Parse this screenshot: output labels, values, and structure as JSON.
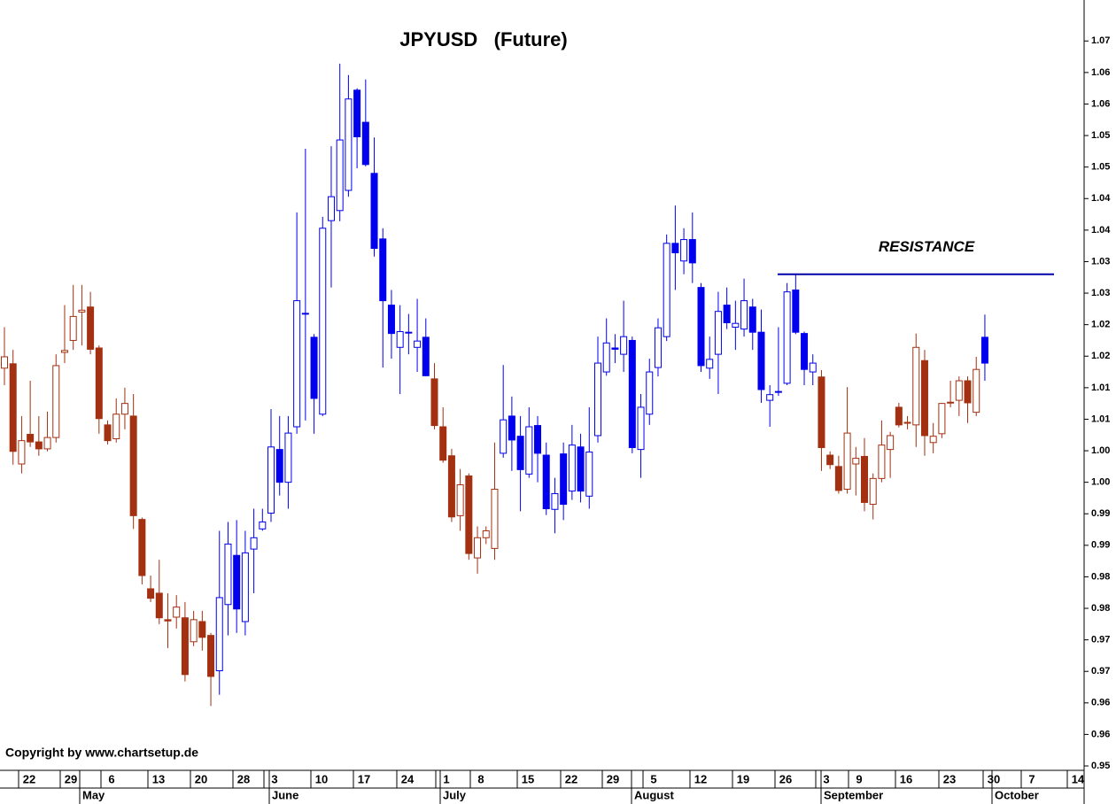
{
  "chart_data": {
    "type": "candlestick",
    "title": "JPYUSD   (Future)",
    "copyright": "Copyright by www.chartsetup.de",
    "x_day_labels": [
      "22",
      "29",
      "6",
      "13",
      "20",
      "28",
      "3",
      "10",
      "17",
      "24",
      "1",
      "8",
      "15",
      "22",
      "29",
      "5",
      "12",
      "19",
      "26",
      "3",
      "9",
      "16",
      "23",
      "30",
      "7",
      "14"
    ],
    "x_month_labels": [
      "May",
      "June",
      "July",
      "August",
      "September",
      "October"
    ],
    "open": [
      1.0131,
      1.0138,
      0.9979,
      1.0026,
      1.0014,
      1.0003,
      1.0021,
      1.0156,
      1.0175,
      1.022,
      1.0228,
      1.0163,
      1.0041,
      1.0019,
      1.0058,
      1.0055,
      0.9891,
      0.9781,
      0.9774,
      0.9732,
      0.9736,
      0.9735,
      0.9697,
      0.9729,
      0.9707,
      0.9651,
      0.9756,
      0.9834,
      0.9729,
      0.9844,
      0.9876,
      0.9901,
      1.0002,
      0.995,
      1.0038,
      1.0218,
      1.018,
      1.0058,
      1.0365,
      1.0381,
      1.0413,
      1.0572,
      1.0521,
      1.044,
      1.0336,
      1.0231,
      1.0164,
      1.0188,
      1.0164,
      1.018,
      1.0114,
      1.0038,
      0.9992,
      0.9897,
      0.996,
      0.983,
      0.9862,
      0.9845,
      0.9996,
      1.0055,
      1.0023,
      0.9963,
      1.004,
      0.9993,
      0.9907,
      0.9995,
      0.9936,
      1.0006,
      0.9928,
      1.0024,
      1.0125,
      1.0163,
      1.0153,
      1.0175,
      1.0002,
      1.0058,
      1.0132,
      1.0181,
      1.0329,
      1.0301,
      1.0335,
      1.0259,
      1.0131,
      1.0153,
      1.0231,
      1.0196,
      1.0193,
      1.0228,
      1.0188,
      1.008,
      1.0094,
      1.0107,
      1.0255,
      1.0186,
      1.0125,
      1.0117,
      0.9993,
      0.9975,
      0.9939,
      0.9979,
      0.9991,
      0.9915,
      0.9956,
      1.0002,
      1.0069,
      1.0045,
      1.0041,
      1.0143,
      1.0013,
      1.0027,
      1.0076,
      1.008,
      1.0111,
      1.0061,
      1.018
    ],
    "high": [
      1.0196,
      1.016,
      1.0055,
      1.0111,
      1.0055,
      1.0062,
      1.0153,
      1.0231,
      1.0263,
      1.0263,
      1.0252,
      1.0167,
      1.0048,
      1.0083,
      1.01,
      1.009,
      0.9894,
      0.9802,
      0.9827,
      0.9774,
      0.9771,
      0.976,
      0.9746,
      0.9746,
      0.9711,
      0.9873,
      0.9887,
      0.989,
      0.9873,
      0.9908,
      0.9908,
      1.0066,
      1.0055,
      1.0055,
      1.0378,
      1.0479,
      1.0185,
      1.0371,
      1.0483,
      1.0614,
      1.0596,
      1.0575,
      1.0589,
      1.0497,
      1.0353,
      1.0255,
      1.0231,
      1.0217,
      1.0241,
      1.021,
      1.0139,
      1.0069,
      1.0003,
      0.9971,
      0.9964,
      0.988,
      0.988,
      1.0013,
      1.0136,
      1.0086,
      1.0055,
      1.0069,
      1.0055,
      1.0013,
      0.9957,
      1.0013,
      1.0041,
      1.0027,
      1.0069,
      1.0181,
      1.021,
      1.0185,
      1.0238,
      1.0181,
      1.009,
      1.0146,
      1.021,
      1.0343,
      1.0389,
      1.0353,
      1.0378,
      1.0266,
      1.0181,
      1.0252,
      1.0259,
      1.0238,
      1.0273,
      1.0241,
      1.0224,
      1.0104,
      1.0196,
      1.0266,
      1.028,
      1.0189,
      1.0153,
      1.0128,
      0.9999,
      0.9992,
      1.0101,
      1.0006,
      1.002,
      0.9964,
      1.0048,
      1.003,
      1.0076,
      1.0055,
      1.0186,
      1.016,
      1.0044,
      1.0076,
      1.0111,
      1.0118,
      1.0118,
      1.0149,
      1.0216
    ],
    "low": [
      1.0104,
      0.9978,
      0.9964,
      1.0006,
      0.9992,
      0.9999,
      1.0013,
      1.0139,
      1.016,
      1.0167,
      1.0153,
      1.0027,
      1.001,
      1.0013,
      1.0034,
      0.9876,
      0.9788,
      0.976,
      0.9725,
      0.9687,
      0.9718,
      0.9634,
      0.969,
      0.9683,
      0.9595,
      0.9613,
      0.9707,
      0.9711,
      0.9707,
      0.9774,
      0.9873,
      0.9887,
      0.9929,
      0.9908,
      1.0027,
      1.0048,
      1.0027,
      1.0055,
      1.0259,
      1.0364,
      1.0403,
      1.0448,
      1.0451,
      1.0308,
      1.0132,
      1.0146,
      1.009,
      1.0153,
      1.0125,
      1.0118,
      1.0034,
      0.9981,
      0.9887,
      0.9873,
      0.9827,
      0.9805,
      0.9852,
      0.9827,
      0.9989,
      0.9968,
      0.9904,
      0.9957,
      0.995,
      0.9898,
      0.9869,
      0.989,
      0.9922,
      0.9918,
      0.9908,
      1.0013,
      1.0119,
      1.0139,
      1.0125,
      0.9996,
      0.9957,
      1.0041,
      1.0118,
      1.0174,
      1.0255,
      1.028,
      1.0266,
      1.0125,
      1.0114,
      1.009,
      1.0193,
      1.016,
      1.0181,
      1.016,
      1.0076,
      1.0038,
      1.0087,
      1.0104,
      1.0185,
      1.0104,
      1.0104,
      0.9968,
      0.9971,
      0.9932,
      0.9932,
      0.9929,
      0.9904,
      0.9891,
      0.995,
      0.9957,
      1.0037,
      1.0034,
      1.0006,
      0.9992,
      0.9996,
      1.002,
      1.0069,
      1.0055,
      1.0044,
      1.0055,
      1.0111
    ],
    "close": [
      1.0149,
      0.9999,
      1.0016,
      1.0014,
      1.0003,
      1.0021,
      1.0135,
      1.0159,
      1.0213,
      1.0223,
      1.0161,
      1.0051,
      1.0016,
      1.0058,
      1.0075,
      0.9897,
      0.9802,
      0.9766,
      0.9735,
      0.973,
      0.9752,
      0.9645,
      0.9732,
      0.9704,
      0.9642,
      0.9767,
      0.9852,
      0.9749,
      0.9838,
      0.9862,
      0.9887,
      1.0006,
      0.995,
      1.0028,
      1.0238,
      1.0217,
      1.0083,
      1.0353,
      1.0403,
      1.0493,
      1.0558,
      1.0498,
      1.0454,
      1.0321,
      1.0238,
      1.0186,
      1.0189,
      1.0187,
      1.0174,
      1.0119,
      1.004,
      0.9985,
      0.9895,
      0.9946,
      0.9837,
      0.9862,
      0.9873,
      0.9939,
      1.0049,
      1.0017,
      0.997,
      1.0038,
      0.9996,
      0.9908,
      0.9932,
      0.9915,
      1.0009,
      0.9936,
      0.9998,
      1.0139,
      1.0171,
      1.0161,
      1.0181,
      1.0005,
      1.0069,
      1.0125,
      1.0195,
      1.0329,
      1.0314,
      1.0335,
      1.0298,
      1.0135,
      1.0145,
      1.0221,
      1.0203,
      1.0202,
      1.0238,
      1.0188,
      1.0097,
      1.0089,
      1.0093,
      1.0252,
      1.0188,
      1.0129,
      1.0139,
      1.0005,
      0.9978,
      0.9937,
      1.0028,
      0.9988,
      0.9918,
      0.9956,
      1.0009,
      1.0024,
      1.0041,
      1.0044,
      1.0164,
      1.0024,
      1.0023,
      1.0075,
      1.0077,
      1.0111,
      1.0076,
      1.0129,
      1.0139
    ],
    "colors": [
      "#a33010",
      "#a33010",
      "#a33010",
      "#a33010",
      "#a33010",
      "#a33010",
      "#a33010",
      "#a33010",
      "#a33010",
      "#a33010",
      "#a33010",
      "#a33010",
      "#a33010",
      "#a33010",
      "#a33010",
      "#a33010",
      "#a33010",
      "#a33010",
      "#a33010",
      "#a33010",
      "#a33010",
      "#a33010",
      "#a33010",
      "#a33010",
      "#a33010",
      "#0000ee",
      "#0000ee",
      "#0000ee",
      "#0000ee",
      "#0000ee",
      "#0000ee",
      "#0000ee",
      "#0000ee",
      "#0000ee",
      "#0000ee",
      "#0000ee",
      "#0000ee",
      "#0000ee",
      "#0000ee",
      "#0000ee",
      "#0000ee",
      "#0000ee",
      "#0000ee",
      "#0000ee",
      "#0000ee",
      "#0000ee",
      "#0000ee",
      "#0000ee",
      "#0000ee",
      "#0000ee",
      "#a33010",
      "#a33010",
      "#a33010",
      "#a33010",
      "#a33010",
      "#a33010",
      "#a33010",
      "#a33010",
      "#0000ee",
      "#0000ee",
      "#0000ee",
      "#0000ee",
      "#0000ee",
      "#0000ee",
      "#0000ee",
      "#0000ee",
      "#0000ee",
      "#0000ee",
      "#0000ee",
      "#0000ee",
      "#0000ee",
      "#0000ee",
      "#0000ee",
      "#0000ee",
      "#0000ee",
      "#0000ee",
      "#0000ee",
      "#0000ee",
      "#0000ee",
      "#0000ee",
      "#0000ee",
      "#0000ee",
      "#0000ee",
      "#0000ee",
      "#0000ee",
      "#0000ee",
      "#0000ee",
      "#0000ee",
      "#0000ee",
      "#0000ee",
      "#0000ee",
      "#0000ee",
      "#0000ee",
      "#0000ee",
      "#0000ee",
      "#a33010",
      "#a33010",
      "#a33010",
      "#a33010",
      "#a33010",
      "#a33010",
      "#a33010",
      "#a33010",
      "#a33010",
      "#a33010",
      "#a33010",
      "#a33010",
      "#a33010",
      "#a33010",
      "#a33010",
      "#a33010",
      "#a33010",
      "#a33010",
      "#a33010",
      "#0000ee"
    ],
    "resistance": {
      "label": "RESISTANCE",
      "value": 1.028,
      "color": "#0000aa"
    },
    "ylim": [
      0.9493,
      1.0715
    ],
    "yticks": [
      {
        "value": 0.95,
        "label": "0.95"
      },
      {
        "value": 0.955,
        "label": "0.96"
      },
      {
        "value": 0.96,
        "label": "0.96"
      },
      {
        "value": 0.965,
        "label": "0.97"
      },
      {
        "value": 0.97,
        "label": "0.97"
      },
      {
        "value": 0.975,
        "label": "0.98"
      },
      {
        "value": 0.98,
        "label": "0.98"
      },
      {
        "value": 0.985,
        "label": "0.99"
      },
      {
        "value": 0.99,
        "label": "0.99"
      },
      {
        "value": 0.995,
        "label": "1.00"
      },
      {
        "value": 1.0,
        "label": "1.00"
      },
      {
        "value": 1.005,
        "label": "1.01"
      },
      {
        "value": 1.01,
        "label": "1.01"
      },
      {
        "value": 1.015,
        "label": "1.02"
      },
      {
        "value": 1.02,
        "label": "1.02"
      },
      {
        "value": 1.025,
        "label": "1.03"
      },
      {
        "value": 1.03,
        "label": "1.03"
      },
      {
        "value": 1.035,
        "label": "1.04"
      },
      {
        "value": 1.04,
        "label": "1.04"
      },
      {
        "value": 1.045,
        "label": "1.05"
      },
      {
        "value": 1.05,
        "label": "1.05"
      },
      {
        "value": 1.055,
        "label": "1.06"
      },
      {
        "value": 1.06,
        "label": "1.06"
      },
      {
        "value": 1.065,
        "label": "1.07"
      }
    ]
  }
}
